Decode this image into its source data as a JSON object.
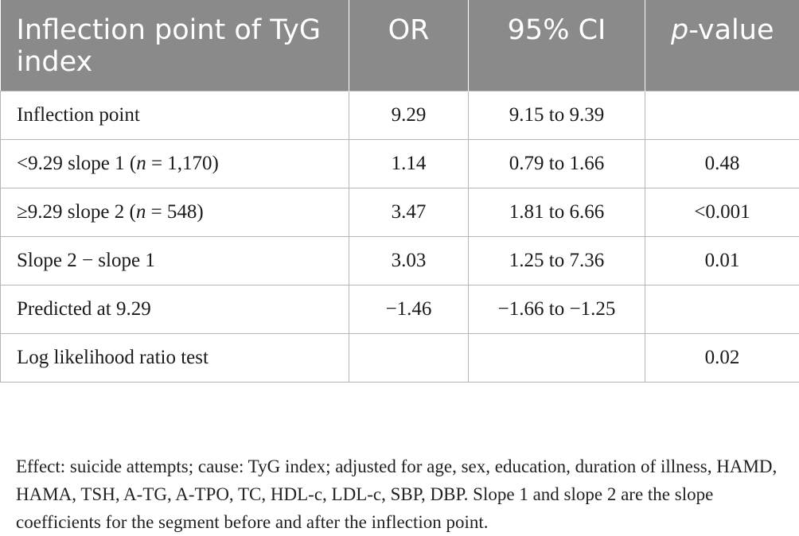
{
  "table": {
    "headers": {
      "col1": "Inflection point of TyG index",
      "col2": "OR",
      "col3": "95% CI",
      "col4_italic": "p",
      "col4_rest": "-value"
    },
    "rows": [
      {
        "label": "Inflection point",
        "or": "9.29",
        "ci": "9.15 to 9.39",
        "p": ""
      },
      {
        "label_pre": "<9.29 slope 1 (",
        "label_n": "n",
        "label_post": " = 1,170)",
        "or": "1.14",
        "ci": "0.79 to 1.66",
        "p": "0.48"
      },
      {
        "label_pre": "≥9.29 slope 2 (",
        "label_n": "n",
        "label_post": " = 548)",
        "or": "3.47",
        "ci": "1.81 to 6.66",
        "p": "<0.001"
      },
      {
        "label": "Slope 2 − slope 1",
        "or": "3.03",
        "ci": "1.25 to 7.36",
        "p": "0.01"
      },
      {
        "label": "Predicted at 9.29",
        "or": "−1.46",
        "ci": "−1.66 to −1.25",
        "p": ""
      },
      {
        "label": "Log likelihood ratio test",
        "or": "",
        "ci": "",
        "p": "0.02"
      }
    ]
  },
  "footnote": "Effect: suicide attempts; cause: TyG index; adjusted for age, sex, education, duration of illness, HAMD, HAMA, TSH, A-TG, A-TPO, TC, HDL-c, LDL-c, SBP, DBP. Slope 1 and slope 2 are the slope coefficients for the segment before and after the inflection point.",
  "colors": {
    "header_bg": "#8a8a8a",
    "header_text": "#ffffff",
    "grid": "#b5b5b5"
  }
}
